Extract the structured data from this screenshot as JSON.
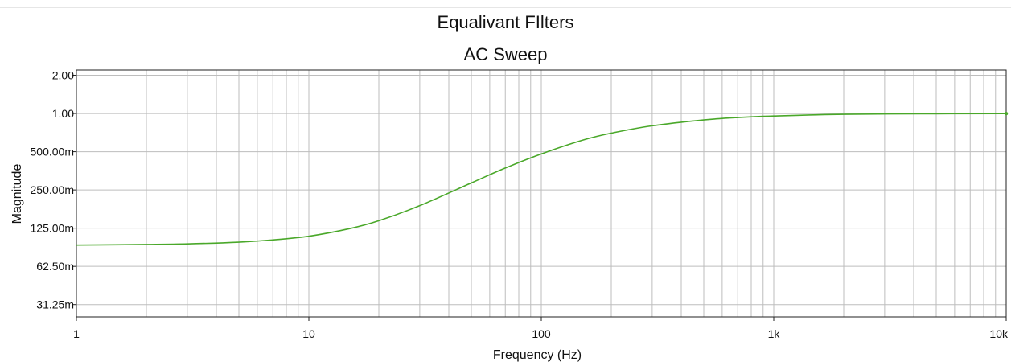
{
  "chart_data": {
    "type": "line",
    "title": "Equalivant FIlters",
    "subtitle": "AC Sweep",
    "xlabel": "Frequency (Hz)",
    "ylabel": "Magnitude",
    "xscale": "log",
    "yscale": "log",
    "xlim": [
      1,
      10000
    ],
    "ylim": [
      0.025,
      2.2
    ],
    "grid": true,
    "x_ticks": [
      {
        "value": 1,
        "label": "1"
      },
      {
        "value": 10,
        "label": "10"
      },
      {
        "value": 100,
        "label": "100"
      },
      {
        "value": 1000,
        "label": "1k"
      },
      {
        "value": 10000,
        "label": "10k"
      }
    ],
    "y_ticks": [
      {
        "value": 2.0,
        "label": "2.00"
      },
      {
        "value": 1.0,
        "label": "1.00"
      },
      {
        "value": 0.5,
        "label": "500.00m"
      },
      {
        "value": 0.25,
        "label": "250.00m"
      },
      {
        "value": 0.125,
        "label": "125.00m"
      },
      {
        "value": 0.0625,
        "label": "62.50m"
      },
      {
        "value": 0.03125,
        "label": "31.25m"
      }
    ],
    "series": [
      {
        "color": "#4aa82a",
        "x": [
          1,
          2,
          3,
          5,
          7,
          10,
          15,
          20,
          30,
          50,
          70,
          100,
          150,
          200,
          300,
          500,
          700,
          1000,
          2000,
          5000,
          10000
        ],
        "y": [
          0.092,
          0.093,
          0.094,
          0.097,
          0.101,
          0.108,
          0.124,
          0.143,
          0.188,
          0.284,
          0.372,
          0.48,
          0.615,
          0.7,
          0.8,
          0.89,
          0.93,
          0.955,
          0.985,
          0.995,
          0.998
        ]
      }
    ]
  }
}
